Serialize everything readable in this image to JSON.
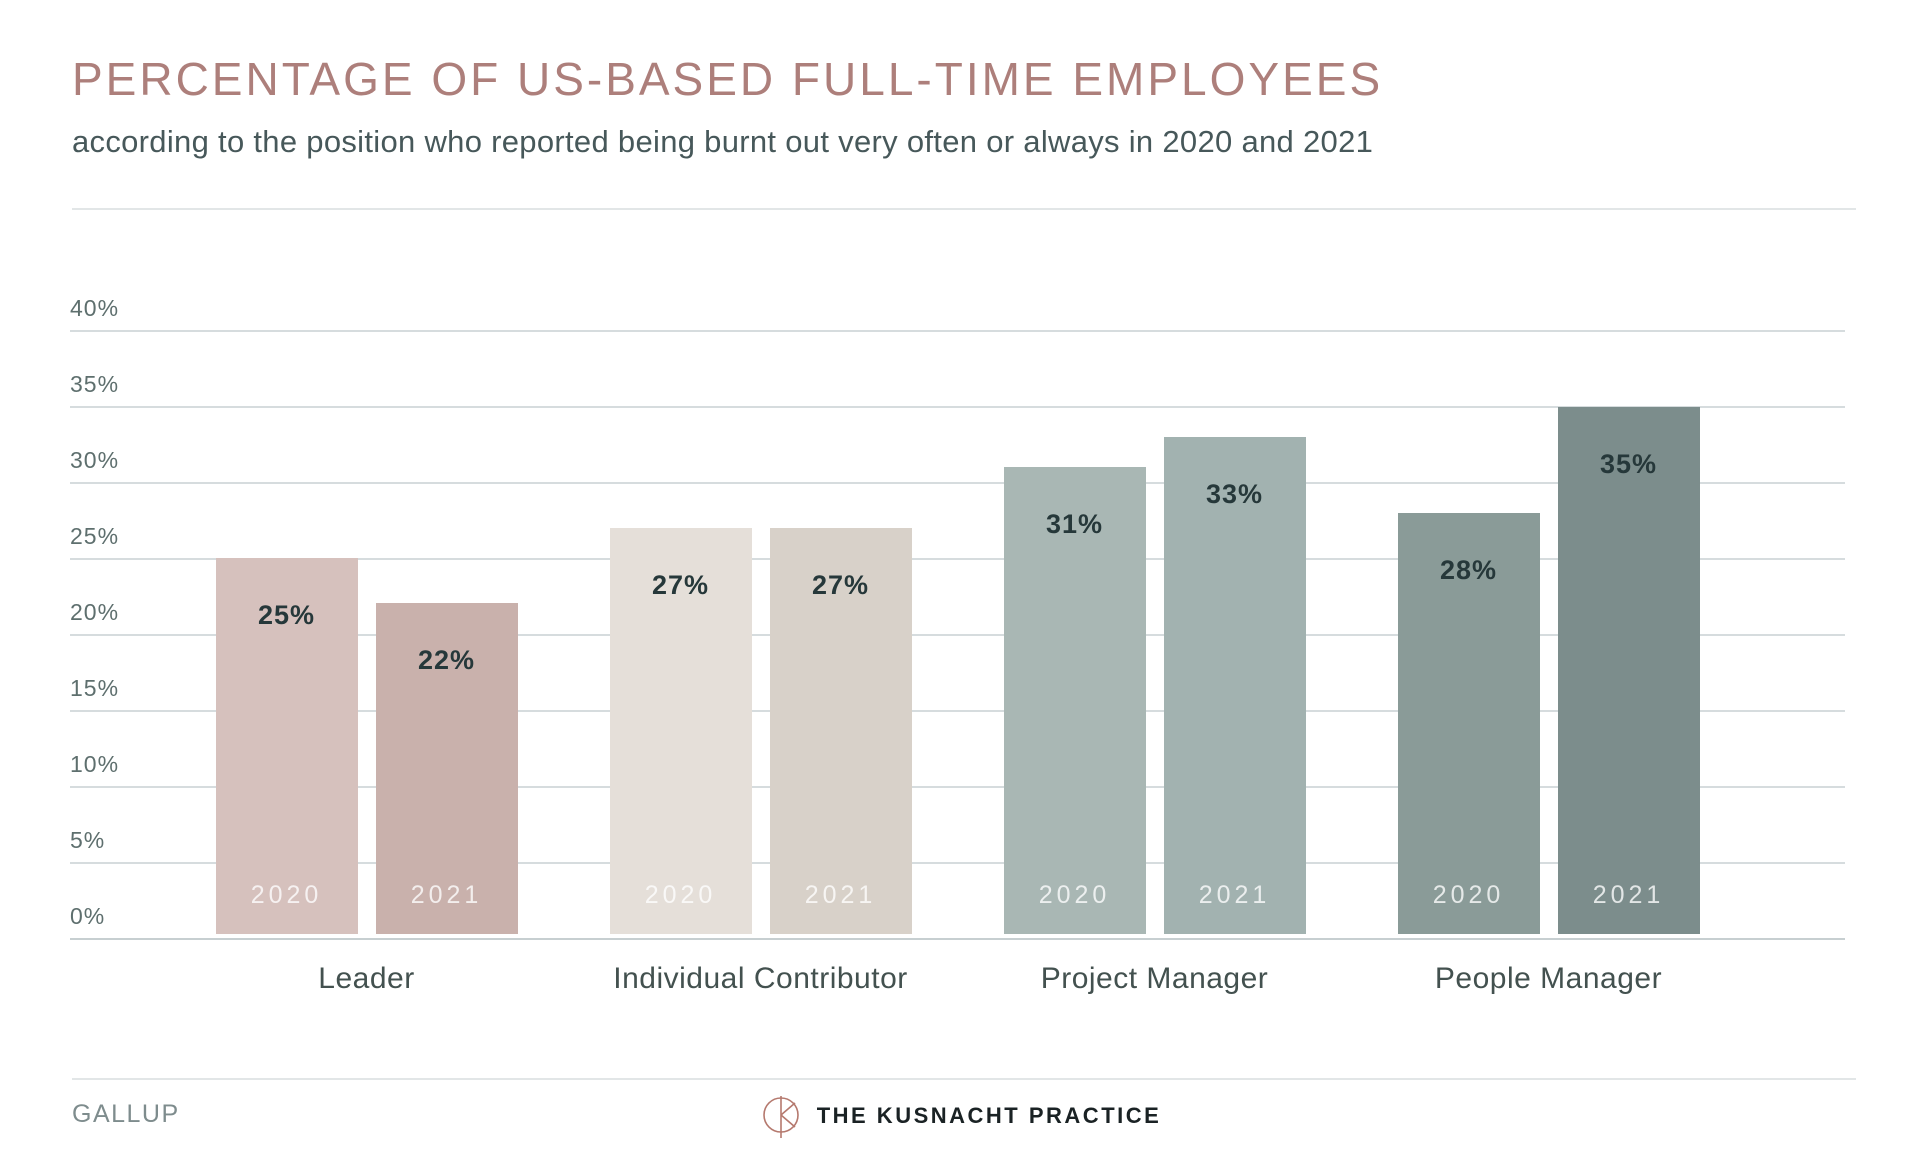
{
  "header": {
    "title": "PERCENTAGE OF US-BASED FULL-TIME EMPLOYEES",
    "subtitle": "according to the position who reported being burnt out very often or always in 2020 and 2021"
  },
  "chart_data": {
    "type": "bar",
    "title": "PERCENTAGE OF US-BASED FULL-TIME EMPLOYEES",
    "subtitle": "according to the position who reported being burnt out very often or always in 2020 and 2021",
    "categories": [
      "Leader",
      "Individual Contributor",
      "Project Manager",
      "People Manager"
    ],
    "series": [
      {
        "name": "2020",
        "values": [
          25,
          27,
          31,
          28
        ]
      },
      {
        "name": "2021",
        "values": [
          22,
          27,
          33,
          35
        ]
      }
    ],
    "value_label_suffix": "%",
    "xlabel": "",
    "ylabel": "",
    "ylim": [
      0,
      40
    ],
    "ytick_step": 5,
    "yticks_top_to_bottom": [
      "40%",
      "35%",
      "30%",
      "25%",
      "20%",
      "15%",
      "10%",
      "5%",
      "0%"
    ],
    "grid": true,
    "legend_position": "none (series year labels printed inside bar bottoms)",
    "bar_colors_by_group": [
      [
        "#d6c1bd",
        "#c9b1ac"
      ],
      [
        "#e5dfd9",
        "#d8d1c9"
      ],
      [
        "#a9b7b4",
        "#a2b2b0"
      ],
      [
        "#8a9b98",
        "#7c8d8c"
      ]
    ]
  },
  "colors": {
    "title": "#ad7f7b",
    "subtitle": "#47585a",
    "axis_label": "#5e6f6e",
    "gridline": "#d6dcde",
    "value_label": "#26383a",
    "year_label": "rgba(255,255,255,0.78)",
    "category_label": "#43514f",
    "logo": "#b5796e"
  },
  "footer": {
    "source": "GALLUP",
    "brand": "THE KUSNACHT PRACTICE",
    "logo_icon": "circle-k-logo"
  }
}
